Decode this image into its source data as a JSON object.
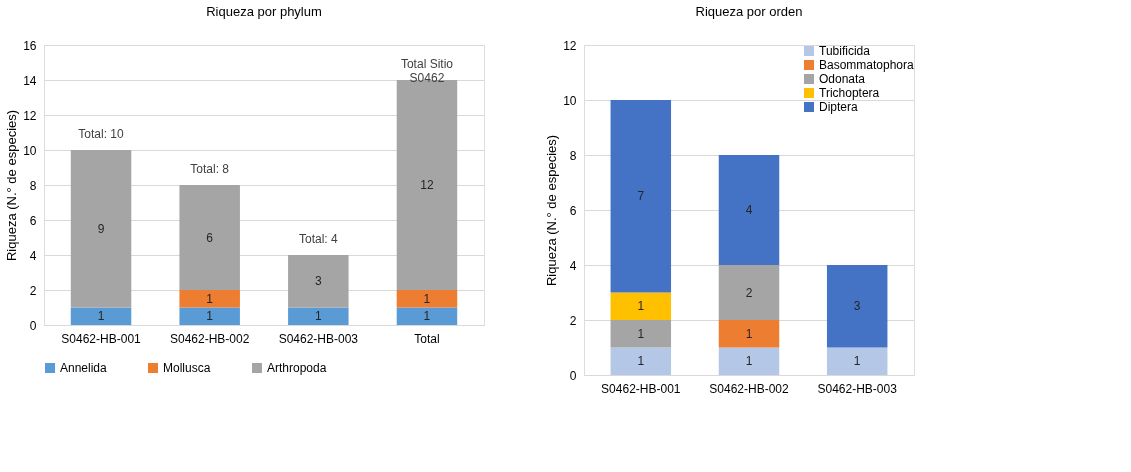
{
  "chart_data": [
    {
      "type": "bar",
      "title": "Riqueza por phylum",
      "ylabel": "Riqueza (N.° de especies)",
      "categories": [
        "S0462-HB-001",
        "S0462-HB-002",
        "S0462-HB-003",
        "Total"
      ],
      "stacked": true,
      "series": [
        {
          "name": "Annelida",
          "color": "#5b9bd5",
          "values": [
            1,
            1,
            1,
            1
          ]
        },
        {
          "name": "Mollusca",
          "color": "#ed7d31",
          "values": [
            null,
            1,
            null,
            1
          ]
        },
        {
          "name": "Arthropoda",
          "color": "#a5a5a5",
          "values": [
            9,
            6,
            3,
            12
          ]
        }
      ],
      "totals": [
        "Total: 10",
        "Total: 8",
        "Total: 4",
        "Total Sitio\nS0462"
      ],
      "ylim": [
        0,
        16
      ],
      "yticks": [
        0,
        2,
        4,
        6,
        8,
        10,
        12,
        14,
        16
      ],
      "grid": "y",
      "legend": "bottom",
      "data_labels": true
    },
    {
      "type": "bar",
      "title": "Riqueza por orden",
      "ylabel": "Riqueza (N.° de especies)",
      "categories": [
        "S0462-HB-001",
        "S0462-HB-002",
        "S0462-HB-003"
      ],
      "stacked": true,
      "series": [
        {
          "name": "Tubificida",
          "color": "#b4c7e7",
          "values": [
            1,
            1,
            1
          ]
        },
        {
          "name": "Basommatophora",
          "color": "#ed7d31",
          "values": [
            null,
            1,
            null
          ]
        },
        {
          "name": "Odonata",
          "color": "#a5a5a5",
          "values": [
            1,
            2,
            null
          ]
        },
        {
          "name": "Trichoptera",
          "color": "#ffc000",
          "values": [
            1,
            null,
            null
          ]
        },
        {
          "name": "Diptera",
          "color": "#4472c4",
          "values": [
            7,
            4,
            3
          ]
        }
      ],
      "ylim": [
        0,
        12
      ],
      "yticks": [
        0,
        2,
        4,
        6,
        8,
        10,
        12
      ],
      "grid": "y",
      "legend": "top right",
      "data_labels": true
    }
  ]
}
